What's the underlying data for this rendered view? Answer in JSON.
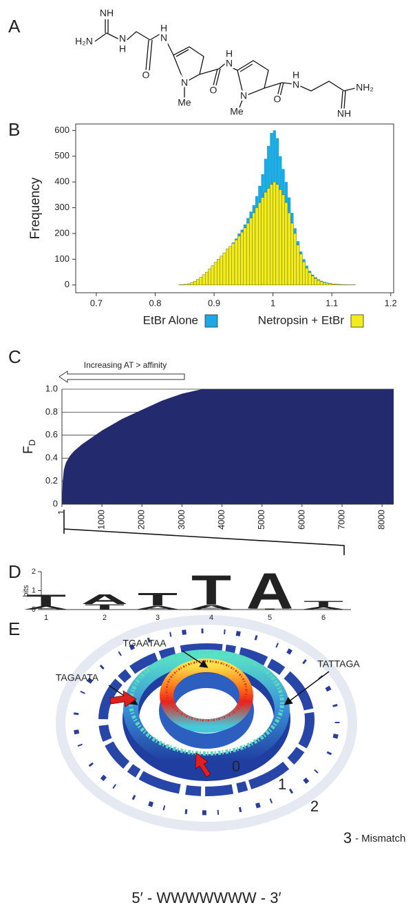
{
  "panel_labels": [
    "A",
    "B",
    "C",
    "D",
    "E"
  ],
  "structure": {
    "atoms": [
      "NH",
      "H₂N",
      "N",
      "H",
      "O",
      "H",
      "N",
      "N",
      "Me",
      "O",
      "H",
      "N",
      "N",
      "Me",
      "O",
      "H",
      "N",
      "NH₂",
      "NH"
    ]
  },
  "chart_data": [
    {
      "type": "histogram",
      "ylabel": "Frequency",
      "bins": [
        0.84,
        0.845,
        0.85,
        0.855,
        0.86,
        0.865,
        0.87,
        0.875,
        0.88,
        0.885,
        0.89,
        0.895,
        0.9,
        0.905,
        0.91,
        0.915,
        0.92,
        0.925,
        0.93,
        0.935,
        0.94,
        0.945,
        0.95,
        0.955,
        0.96,
        0.965,
        0.97,
        0.975,
        0.98,
        0.985,
        0.99,
        0.995,
        1,
        1.005,
        1.01,
        1.015,
        1.02,
        1.025,
        1.03,
        1.035,
        1.04,
        1.045,
        1.05,
        1.055,
        1.06,
        1.065,
        1.07,
        1.075,
        1.08,
        1.085,
        1.09,
        1.095,
        1.1,
        1.105,
        1.11,
        1.115,
        1.12,
        1.125,
        1.13,
        1.135,
        1.14
      ],
      "series": [
        {
          "name": "EtBr Alone",
          "color": "#1ba9e1",
          "values": [
            1,
            2,
            3,
            5,
            10,
            15,
            22,
            30,
            40,
            50,
            62,
            75,
            88,
            100,
            112,
            125,
            140,
            150,
            165,
            180,
            200,
            215,
            235,
            260,
            285,
            310,
            345,
            385,
            430,
            490,
            540,
            590,
            600,
            570,
            500,
            450,
            400,
            340,
            280,
            220,
            170,
            130,
            100,
            75,
            55,
            40,
            30,
            22,
            16,
            12,
            9,
            7,
            5,
            4,
            3,
            2,
            2,
            1,
            1,
            1
          ]
        },
        {
          "name": "Netropsin + EtBr",
          "color": "#f2ec1a",
          "values": [
            1,
            2,
            3,
            5,
            10,
            15,
            22,
            30,
            40,
            50,
            62,
            75,
            88,
            100,
            112,
            125,
            140,
            150,
            162,
            175,
            190,
            205,
            222,
            240,
            260,
            280,
            300,
            320,
            340,
            360,
            375,
            390,
            400,
            390,
            370,
            350,
            320,
            280,
            240,
            200,
            155,
            120,
            90,
            65,
            48,
            35,
            25,
            18,
            13,
            9,
            7,
            5,
            4,
            3,
            2,
            2,
            1,
            1,
            1,
            1
          ]
        }
      ],
      "xlim": [
        0.665,
        1.205
      ],
      "ylim": [
        -30,
        625
      ],
      "xticks": [
        0.7,
        0.8,
        0.9,
        1,
        1.1,
        1.2
      ],
      "yticks": [
        0,
        100,
        200,
        300,
        400,
        500,
        600
      ]
    },
    {
      "type": "area",
      "ylabel": "F",
      "ylabel_subscript": "D",
      "annotation": "Increasing AT > affinity",
      "color": "#242a6e",
      "x": [
        1,
        20,
        50,
        100,
        200,
        300,
        500,
        750,
        1000,
        1500,
        2000,
        2500,
        3000,
        3500,
        4000,
        8290
      ],
      "values": [
        0,
        0.2,
        0.3,
        0.36,
        0.42,
        0.46,
        0.52,
        0.58,
        0.64,
        0.74,
        0.82,
        0.9,
        0.96,
        1,
        1,
        1
      ],
      "xlim": [
        1,
        8290
      ],
      "ylim": [
        0,
        1
      ],
      "xticks": [
        1,
        1000,
        2000,
        3000,
        4000,
        5000,
        6000,
        7000,
        8000
      ],
      "yticks": [
        0,
        0.2,
        0.4,
        0.6,
        0.8,
        {
          "value": 1,
          "label": "1.0"
        }
      ],
      "grid": true
    }
  ],
  "logo": {
    "ylabel": "bits",
    "ylim": [
      0,
      2
    ],
    "yticks": [
      0,
      1,
      2
    ],
    "positions": [
      "1",
      "2",
      "3",
      "4",
      "5",
      "6"
    ],
    "stacks": [
      [
        {
          "letter": "A",
          "color": "#2db34a",
          "height": 0.18
        },
        {
          "letter": "T",
          "color": "#d62728",
          "height": 0.62
        }
      ],
      [
        {
          "letter": "T",
          "color": "#d62728",
          "height": 0.3
        },
        {
          "letter": "A",
          "color": "#2db34a",
          "height": 0.52
        }
      ],
      [
        {
          "letter": "A",
          "color": "#2db34a",
          "height": 0.2
        },
        {
          "letter": "T",
          "color": "#d62728",
          "height": 0.7
        }
      ],
      [
        {
          "letter": "A",
          "color": "#2db34a",
          "height": 0.25
        },
        {
          "letter": "T",
          "color": "#d62728",
          "height": 1.6
        }
      ],
      [
        {
          "letter": "T",
          "color": "#d62728",
          "height": 0.05
        },
        {
          "letter": "A",
          "color": "#2db34a",
          "height": 1.95
        }
      ],
      [
        {
          "letter": "A",
          "color": "#2db34a",
          "height": 0.14
        },
        {
          "letter": "T",
          "color": "#d62728",
          "height": 0.32
        }
      ]
    ]
  },
  "ring": {
    "annotations": [
      "TGAATAA",
      "TATTAGA",
      "TAGAATA"
    ],
    "ring_labels": [
      "0",
      "1",
      "2",
      "3"
    ],
    "ring_label_suffix": "- Mismatch",
    "caption": "5′ - WWWWWWW - 3′"
  }
}
